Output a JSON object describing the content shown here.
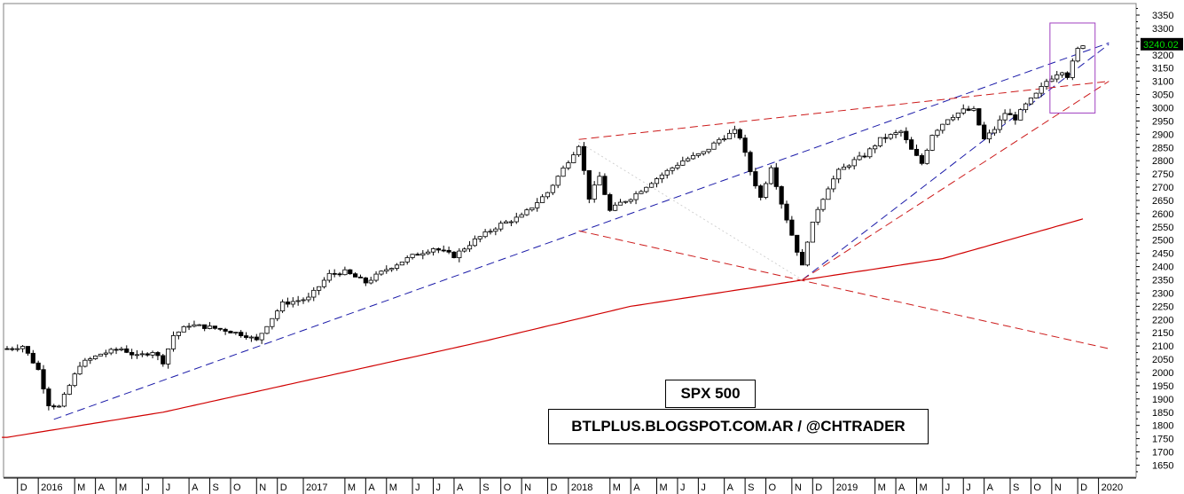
{
  "chart_data": {
    "type": "candlestick",
    "title": "SPX 500",
    "subtitle": "BTLPLUS.BLOGSPOT.COM.AR / @CHTRADER",
    "last_price_label": "3240.02",
    "ylim": [
      1620,
      3370
    ],
    "y_ticks": [
      1650,
      1700,
      1750,
      1800,
      1850,
      1900,
      1950,
      2000,
      2050,
      2100,
      2150,
      2200,
      2250,
      2300,
      2350,
      2400,
      2450,
      2500,
      2550,
      2600,
      2650,
      2700,
      2750,
      2800,
      2850,
      2900,
      2950,
      3000,
      3050,
      3100,
      3150,
      3200,
      3250,
      3300,
      3350
    ],
    "x_labels": [
      {
        "label": "D",
        "week": 2
      },
      {
        "label": "2016",
        "week": 6
      },
      {
        "label": "M",
        "week": 13
      },
      {
        "label": "A",
        "week": 17
      },
      {
        "label": "M",
        "week": 21
      },
      {
        "label": "J",
        "week": 26
      },
      {
        "label": "J",
        "week": 30
      },
      {
        "label": "A",
        "week": 35
      },
      {
        "label": "S",
        "week": 39
      },
      {
        "label": "O",
        "week": 43
      },
      {
        "label": "N",
        "week": 48
      },
      {
        "label": "D",
        "week": 52
      },
      {
        "label": "2017",
        "week": 57
      },
      {
        "label": "M",
        "week": 65
      },
      {
        "label": "A",
        "week": 69
      },
      {
        "label": "M",
        "week": 73
      },
      {
        "label": "J",
        "week": 78
      },
      {
        "label": "J",
        "week": 82
      },
      {
        "label": "A",
        "week": 86
      },
      {
        "label": "S",
        "week": 91
      },
      {
        "label": "O",
        "week": 95
      },
      {
        "label": "N",
        "week": 99
      },
      {
        "label": "D",
        "week": 104
      },
      {
        "label": "2018",
        "week": 108
      },
      {
        "label": "M",
        "week": 116
      },
      {
        "label": "A",
        "week": 120
      },
      {
        "label": "M",
        "week": 125
      },
      {
        "label": "J",
        "week": 129
      },
      {
        "label": "J",
        "week": 133
      },
      {
        "label": "A",
        "week": 138
      },
      {
        "label": "S",
        "week": 142
      },
      {
        "label": "O",
        "week": 146
      },
      {
        "label": "N",
        "week": 151
      },
      {
        "label": "D",
        "week": 155
      },
      {
        "label": "2019",
        "week": 159
      },
      {
        "label": "M",
        "week": 167
      },
      {
        "label": "A",
        "week": 171
      },
      {
        "label": "M",
        "week": 175
      },
      {
        "label": "J",
        "week": 180
      },
      {
        "label": "J",
        "week": 184
      },
      {
        "label": "A",
        "week": 188
      },
      {
        "label": "S",
        "week": 193
      },
      {
        "label": "O",
        "week": 197
      },
      {
        "label": "N",
        "week": 201
      },
      {
        "label": "D",
        "week": 206
      },
      {
        "label": "2020",
        "week": 210
      }
    ],
    "anchors": [
      {
        "w": 0,
        "v": 2090
      },
      {
        "w": 3,
        "v": 2100
      },
      {
        "w": 6,
        "v": 2010
      },
      {
        "w": 8,
        "v": 1880
      },
      {
        "w": 10,
        "v": 1870
      },
      {
        "w": 12,
        "v": 1950
      },
      {
        "w": 14,
        "v": 2030
      },
      {
        "w": 18,
        "v": 2070
      },
      {
        "w": 22,
        "v": 2090
      },
      {
        "w": 25,
        "v": 2060
      },
      {
        "w": 28,
        "v": 2080
      },
      {
        "w": 30,
        "v": 2040
      },
      {
        "w": 32,
        "v": 2140
      },
      {
        "w": 35,
        "v": 2180
      },
      {
        "w": 39,
        "v": 2170
      },
      {
        "w": 42,
        "v": 2160
      },
      {
        "w": 46,
        "v": 2140
      },
      {
        "w": 48,
        "v": 2120
      },
      {
        "w": 50,
        "v": 2180
      },
      {
        "w": 53,
        "v": 2260
      },
      {
        "w": 58,
        "v": 2280
      },
      {
        "w": 62,
        "v": 2370
      },
      {
        "w": 65,
        "v": 2380
      },
      {
        "w": 69,
        "v": 2340
      },
      {
        "w": 73,
        "v": 2390
      },
      {
        "w": 78,
        "v": 2440
      },
      {
        "w": 82,
        "v": 2470
      },
      {
        "w": 86,
        "v": 2440
      },
      {
        "w": 90,
        "v": 2500
      },
      {
        "w": 95,
        "v": 2560
      },
      {
        "w": 99,
        "v": 2590
      },
      {
        "w": 104,
        "v": 2680
      },
      {
        "w": 108,
        "v": 2800
      },
      {
        "w": 110,
        "v": 2860
      },
      {
        "w": 112,
        "v": 2660
      },
      {
        "w": 114,
        "v": 2740
      },
      {
        "w": 116,
        "v": 2610
      },
      {
        "w": 118,
        "v": 2640
      },
      {
        "w": 120,
        "v": 2660
      },
      {
        "w": 124,
        "v": 2720
      },
      {
        "w": 127,
        "v": 2760
      },
      {
        "w": 130,
        "v": 2800
      },
      {
        "w": 134,
        "v": 2830
      },
      {
        "w": 137,
        "v": 2880
      },
      {
        "w": 140,
        "v": 2910
      },
      {
        "w": 141,
        "v": 2890
      },
      {
        "w": 143,
        "v": 2760
      },
      {
        "w": 145,
        "v": 2660
      },
      {
        "w": 147,
        "v": 2780
      },
      {
        "w": 149,
        "v": 2640
      },
      {
        "w": 151,
        "v": 2520
      },
      {
        "w": 153,
        "v": 2400
      },
      {
        "w": 154,
        "v": 2500
      },
      {
        "w": 156,
        "v": 2620
      },
      {
        "w": 158,
        "v": 2700
      },
      {
        "w": 160,
        "v": 2760
      },
      {
        "w": 163,
        "v": 2800
      },
      {
        "w": 165,
        "v": 2820
      },
      {
        "w": 168,
        "v": 2880
      },
      {
        "w": 172,
        "v": 2910
      },
      {
        "w": 174,
        "v": 2840
      },
      {
        "w": 176,
        "v": 2790
      },
      {
        "w": 178,
        "v": 2900
      },
      {
        "w": 181,
        "v": 2960
      },
      {
        "w": 184,
        "v": 2990
      },
      {
        "w": 186,
        "v": 2990
      },
      {
        "w": 188,
        "v": 2880
      },
      {
        "w": 190,
        "v": 2920
      },
      {
        "w": 192,
        "v": 2980
      },
      {
        "w": 194,
        "v": 2960
      },
      {
        "w": 196,
        "v": 3010
      },
      {
        "w": 198,
        "v": 3050
      },
      {
        "w": 200,
        "v": 3100
      },
      {
        "w": 202,
        "v": 3130
      },
      {
        "w": 203,
        "v": 3140
      },
      {
        "w": 204,
        "v": 3120
      },
      {
        "w": 205,
        "v": 3170
      },
      {
        "w": 206,
        "v": 3220
      },
      {
        "w": 207,
        "v": 3240
      }
    ],
    "moving_average": [
      {
        "w": 0,
        "v": 1755
      },
      {
        "w": 30,
        "v": 1850
      },
      {
        "w": 60,
        "v": 1980
      },
      {
        "w": 90,
        "v": 2110
      },
      {
        "w": 120,
        "v": 2250
      },
      {
        "w": 150,
        "v": 2340
      },
      {
        "w": 180,
        "v": 2430
      },
      {
        "w": 207,
        "v": 2580
      }
    ],
    "trendlines": [
      {
        "type": "blue-dashed",
        "from": {
          "w": 9,
          "v": 1823
        },
        "to": {
          "w": 212,
          "v": 3245
        }
      },
      {
        "type": "blue-dashed",
        "from": {
          "w": 153,
          "v": 2350
        },
        "to": {
          "w": 212,
          "v": 3240
        }
      },
      {
        "type": "red-dashed",
        "from": {
          "w": 110,
          "v": 2880
        },
        "to": {
          "w": 212,
          "v": 3100
        }
      },
      {
        "type": "red-dashed",
        "from": {
          "w": 110,
          "v": 2535
        },
        "to": {
          "w": 212,
          "v": 2090
        }
      },
      {
        "type": "red-dashed",
        "from": {
          "w": 153,
          "v": 2350
        },
        "to": {
          "w": 212,
          "v": 3100
        }
      }
    ],
    "highlight_box": {
      "w0": 201,
      "w1": 209,
      "v0": 2980,
      "v1": 3320
    }
  }
}
